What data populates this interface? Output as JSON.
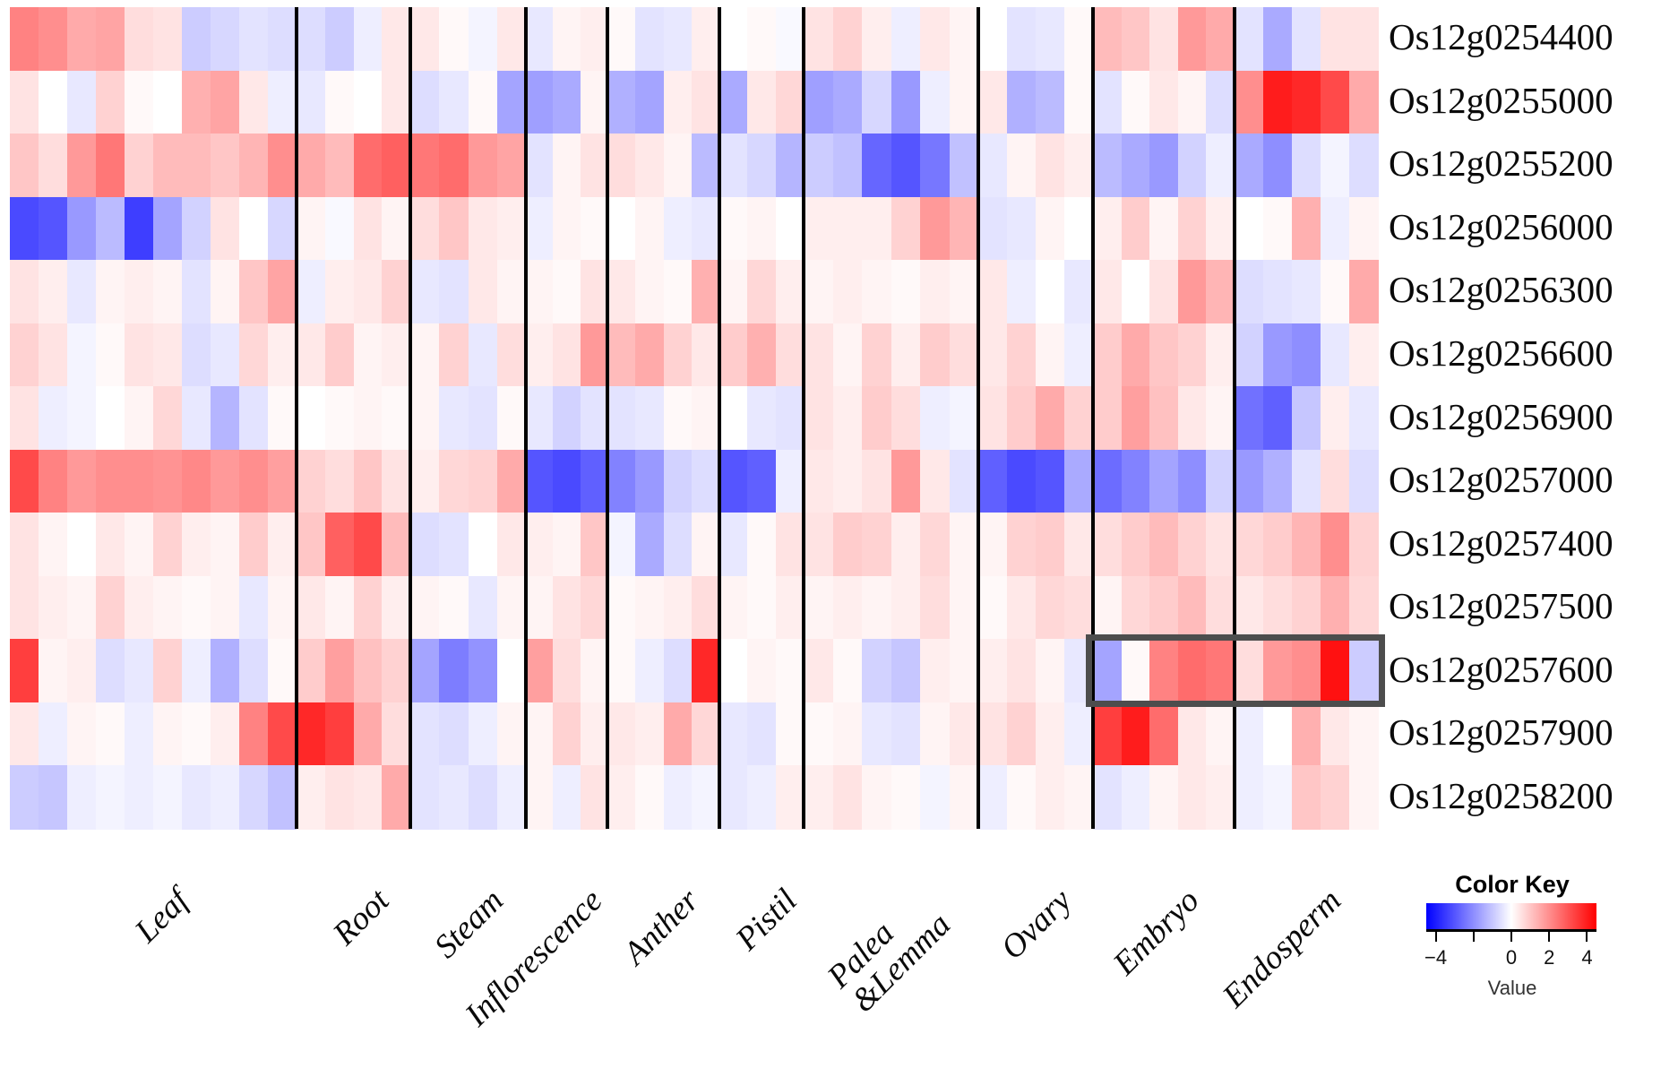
{
  "chart_data": {
    "type": "heatmap",
    "title": "",
    "ylabel": "",
    "xlabel": "",
    "grid": false,
    "colormap": "blue-white-red",
    "value_range": [
      -4.5,
      4.5
    ],
    "separator_color": "#000000",
    "genes": [
      "Os12g0254400",
      "Os12g0255000",
      "Os12g0255200",
      "Os12g0256000",
      "Os12g0256300",
      "Os12g0256600",
      "Os12g0256900",
      "Os12g0257000",
      "Os12g0257400",
      "Os12g0257500",
      "Os12g0257600",
      "Os12g0257900",
      "Os12g0258200"
    ],
    "col_groups": [
      {
        "name": "Leaf",
        "n_cols": 10
      },
      {
        "name": "Root",
        "n_cols": 4
      },
      {
        "name": "Steam",
        "n_cols": 4
      },
      {
        "name": "Inflorescence",
        "n_cols": 3
      },
      {
        "name": "Anther",
        "n_cols": 4
      },
      {
        "name": "Pistil",
        "n_cols": 3
      },
      {
        "name": "Palea\n&Lemma",
        "n_cols": 6
      },
      {
        "name": "Ovary",
        "n_cols": 4
      },
      {
        "name": "Embryo",
        "n_cols": 5
      },
      {
        "name": "Endosperm",
        "n_cols": 5
      }
    ],
    "values": [
      [
        2.2,
        2.0,
        1.5,
        1.6,
        0.6,
        0.5,
        -0.9,
        -0.7,
        -0.5,
        -0.6,
        -0.6,
        -0.9,
        -0.3,
        0.4,
        0.4,
        0.1,
        -0.2,
        0.4,
        -0.4,
        0.2,
        0.3,
        0.1,
        -0.5,
        -0.4,
        0.3,
        0.0,
        0.1,
        -0.1,
        0.5,
        0.8,
        0.3,
        -0.3,
        0.4,
        0.2,
        0.0,
        -0.5,
        -0.4,
        0.1,
        1.2,
        1.0,
        0.5,
        1.8,
        1.5,
        -0.5,
        -1.5,
        -0.5,
        0.5,
        0.5
      ],
      [
        0.5,
        0.0,
        -0.4,
        0.8,
        0.1,
        0.0,
        1.4,
        1.6,
        0.4,
        -0.3,
        -0.4,
        0.1,
        0.0,
        0.4,
        -0.6,
        -0.4,
        0.1,
        -1.6,
        -1.7,
        -1.5,
        0.2,
        -1.4,
        -1.6,
        0.3,
        0.5,
        -1.5,
        0.4,
        0.7,
        -1.7,
        -1.5,
        -0.7,
        -1.8,
        -0.3,
        0.2,
        0.4,
        -1.4,
        -1.2,
        0.1,
        -0.5,
        0.1,
        0.4,
        0.2,
        -0.6,
        2.0,
        4.0,
        3.8,
        3.2,
        1.5
      ],
      [
        1.0,
        0.6,
        1.8,
        2.4,
        0.8,
        1.2,
        1.2,
        1.0,
        1.3,
        2.0,
        1.5,
        1.2,
        2.6,
        2.8,
        2.4,
        2.6,
        1.8,
        1.6,
        -0.5,
        0.2,
        0.5,
        0.6,
        0.4,
        0.2,
        -1.2,
        -0.5,
        -0.7,
        -1.3,
        -0.9,
        -1.1,
        -2.7,
        -3.0,
        -2.4,
        -1.1,
        -0.4,
        0.2,
        0.5,
        0.3,
        -1.2,
        -1.5,
        -1.8,
        -0.8,
        -0.3,
        -1.5,
        -2.0,
        -0.6,
        -0.2,
        -0.6
      ],
      [
        -3.2,
        -3.0,
        -1.8,
        -1.2,
        -3.4,
        -1.6,
        -0.8,
        0.5,
        0.0,
        -0.7,
        0.2,
        -0.1,
        0.5,
        0.2,
        0.6,
        1.0,
        0.4,
        0.3,
        -0.3,
        0.2,
        0.1,
        0.0,
        0.2,
        -0.3,
        -0.4,
        0.1,
        0.2,
        0.0,
        0.3,
        0.3,
        0.3,
        0.8,
        1.8,
        1.3,
        -0.5,
        -0.4,
        0.2,
        0.0,
        0.3,
        0.9,
        0.2,
        0.8,
        0.3,
        0.0,
        0.1,
        1.4,
        -0.3,
        0.2
      ],
      [
        0.5,
        0.3,
        -0.4,
        0.2,
        0.3,
        0.2,
        -0.5,
        0.2,
        1.0,
        1.6,
        -0.3,
        0.3,
        0.4,
        0.8,
        -0.4,
        -0.5,
        0.4,
        0.2,
        0.2,
        0.1,
        0.5,
        0.4,
        0.2,
        0.1,
        1.4,
        0.2,
        0.7,
        0.3,
        0.2,
        0.3,
        0.2,
        0.1,
        0.3,
        0.2,
        0.4,
        -0.3,
        0.0,
        -0.4,
        0.4,
        0.0,
        0.5,
        1.8,
        1.3,
        -0.6,
        -0.5,
        -0.4,
        0.1,
        1.5
      ],
      [
        0.8,
        0.5,
        -0.2,
        0.1,
        0.5,
        0.4,
        -0.6,
        -0.4,
        0.7,
        0.3,
        0.4,
        0.9,
        0.2,
        0.3,
        0.2,
        0.8,
        -0.4,
        0.6,
        0.3,
        0.5,
        1.8,
        1.2,
        1.5,
        0.8,
        0.4,
        0.9,
        1.4,
        0.6,
        0.5,
        0.2,
        0.8,
        0.3,
        0.9,
        0.6,
        0.4,
        0.8,
        0.2,
        -0.3,
        0.9,
        1.5,
        1.0,
        0.8,
        0.3,
        -0.8,
        -1.8,
        -2.0,
        -0.4,
        0.3
      ],
      [
        0.5,
        -0.3,
        -0.2,
        0.0,
        0.2,
        0.7,
        -0.4,
        -1.3,
        -0.5,
        0.1,
        0.0,
        0.1,
        0.2,
        0.1,
        0.2,
        -0.4,
        -0.5,
        0.1,
        -0.4,
        -0.8,
        -0.5,
        -0.5,
        -0.4,
        0.1,
        0.2,
        0.0,
        -0.4,
        -0.5,
        0.5,
        0.3,
        0.9,
        0.6,
        -0.3,
        -0.2,
        0.5,
        0.9,
        1.5,
        0.8,
        0.9,
        1.7,
        1.1,
        0.4,
        0.2,
        -2.5,
        -2.8,
        -1.0,
        0.3,
        -0.4
      ],
      [
        3.2,
        2.2,
        1.8,
        2.0,
        2.0,
        1.9,
        2.1,
        1.8,
        2.0,
        1.7,
        0.8,
        0.6,
        1.0,
        0.5,
        0.3,
        0.7,
        0.8,
        1.5,
        -3.0,
        -3.2,
        -2.8,
        -2.2,
        -1.8,
        -0.8,
        -0.6,
        -3.0,
        -2.8,
        -0.3,
        0.4,
        0.3,
        0.5,
        1.8,
        0.4,
        -0.5,
        -2.8,
        -3.2,
        -3.0,
        -1.5,
        -2.6,
        -2.2,
        -1.6,
        -2.0,
        -0.8,
        -1.8,
        -1.4,
        -0.5,
        0.6,
        -0.6
      ],
      [
        0.5,
        0.2,
        0.0,
        0.4,
        0.2,
        0.8,
        0.3,
        0.2,
        0.9,
        0.3,
        1.0,
        2.8,
        3.2,
        1.2,
        -0.6,
        -0.5,
        0.0,
        0.4,
        0.3,
        0.2,
        1.0,
        -0.2,
        -1.5,
        -0.6,
        0.2,
        -0.4,
        0.1,
        0.5,
        0.5,
        0.9,
        0.8,
        0.3,
        0.7,
        0.2,
        0.2,
        0.8,
        0.9,
        0.4,
        0.6,
        0.9,
        1.2,
        0.8,
        0.5,
        0.7,
        0.9,
        1.3,
        2.0,
        0.8
      ],
      [
        0.5,
        0.3,
        0.2,
        0.8,
        0.3,
        0.2,
        0.1,
        0.2,
        -0.4,
        0.2,
        0.4,
        0.2,
        0.8,
        0.3,
        0.2,
        0.1,
        -0.4,
        0.2,
        0.2,
        0.5,
        0.7,
        0.1,
        0.2,
        0.3,
        0.6,
        0.2,
        0.1,
        0.3,
        0.2,
        0.3,
        0.2,
        0.3,
        0.6,
        0.2,
        0.1,
        0.4,
        0.7,
        0.6,
        0.2,
        0.7,
        0.9,
        1.2,
        0.6,
        0.4,
        0.6,
        0.8,
        1.4,
        0.7
      ],
      [
        3.4,
        0.2,
        0.3,
        -0.6,
        -0.4,
        0.8,
        -0.3,
        -1.4,
        -0.6,
        0.1,
        0.9,
        1.7,
        1.1,
        0.8,
        -1.6,
        -2.3,
        -1.9,
        0.0,
        1.7,
        0.6,
        0.2,
        0.1,
        -0.3,
        -0.6,
        3.8,
        0.0,
        0.2,
        0.1,
        0.4,
        0.1,
        -0.8,
        -1.0,
        0.3,
        0.2,
        0.3,
        0.5,
        0.2,
        -0.4,
        -1.6,
        0.1,
        2.2,
        2.6,
        2.4,
        0.6,
        1.8,
        2.0,
        4.2,
        -0.9
      ],
      [
        0.4,
        -0.3,
        0.2,
        0.1,
        -0.3,
        0.2,
        0.1,
        0.3,
        2.2,
        3.2,
        3.8,
        3.4,
        1.5,
        0.6,
        -0.5,
        -0.6,
        -0.3,
        0.2,
        0.2,
        0.8,
        0.3,
        0.4,
        0.3,
        1.5,
        0.7,
        -0.4,
        -0.5,
        0.1,
        0.1,
        0.2,
        -0.4,
        -0.5,
        0.2,
        0.4,
        0.5,
        0.8,
        0.3,
        -0.3,
        3.4,
        4.0,
        2.6,
        0.4,
        0.2,
        -0.3,
        0.0,
        1.4,
        0.4,
        0.2
      ],
      [
        -0.9,
        -1.0,
        -0.3,
        -0.2,
        -0.3,
        -0.2,
        -0.4,
        -0.3,
        -0.7,
        -1.1,
        0.3,
        0.5,
        0.4,
        1.5,
        -0.5,
        -0.4,
        -0.6,
        -0.3,
        0.2,
        -0.3,
        0.5,
        0.3,
        0.1,
        -0.3,
        -0.2,
        -0.4,
        -0.3,
        0.3,
        0.3,
        0.5,
        0.2,
        0.1,
        -0.2,
        0.2,
        -0.3,
        0.1,
        0.3,
        0.2,
        -0.5,
        -0.3,
        0.2,
        0.4,
        0.3,
        -0.3,
        -0.2,
        1.0,
        0.8,
        0.2
      ]
    ],
    "highlight": {
      "gene": "Os12g0257600",
      "tissues": [
        "Embryo",
        "Endosperm"
      ],
      "border_color": "#4d4d4d"
    },
    "color_key": {
      "title": "Color Key",
      "xlabel": "Value",
      "tick_values": [
        -4,
        -2,
        0,
        2,
        4
      ],
      "tick_labels": [
        {
          "value": -4,
          "label": "−4"
        },
        {
          "value": 0,
          "label": "0"
        },
        {
          "value": 2,
          "label": "2"
        },
        {
          "value": 4,
          "label": "4"
        }
      ],
      "gradient": [
        "#0000ff",
        "#ffffff",
        "#ff0000"
      ]
    }
  }
}
